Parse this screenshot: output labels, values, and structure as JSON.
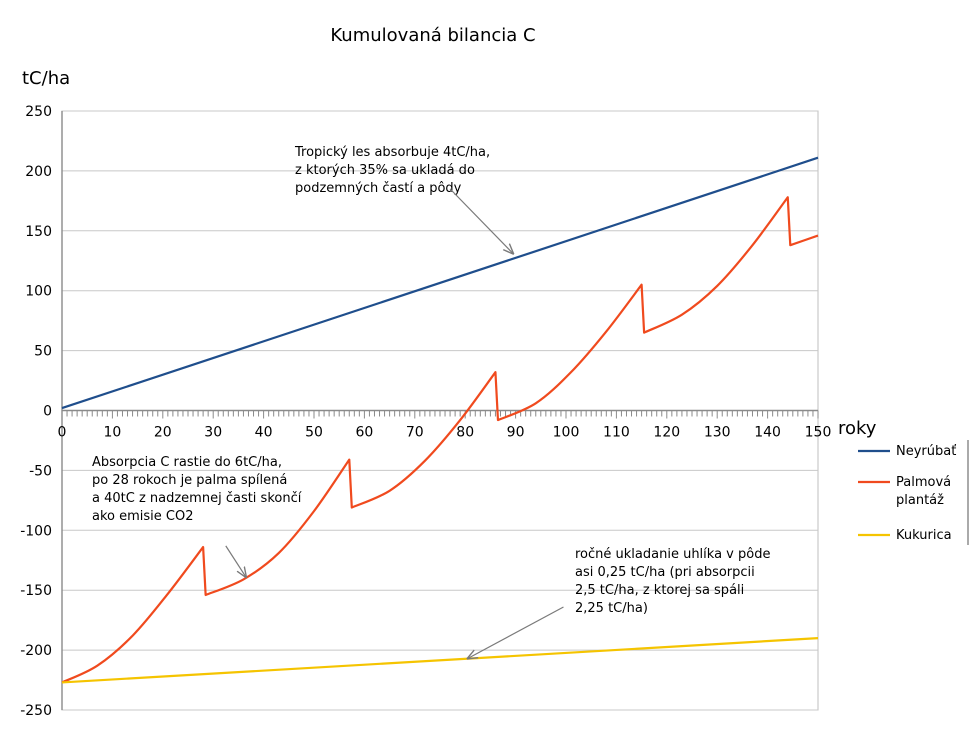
{
  "chart_data": {
    "type": "line",
    "title": "Kumulovaná bilancia C",
    "ylabel": "tC/ha",
    "xlabel": "roky",
    "xlim": [
      0,
      150
    ],
    "ylim": [
      -250,
      250
    ],
    "xticks": [
      0,
      10,
      20,
      30,
      40,
      50,
      60,
      70,
      80,
      90,
      100,
      110,
      120,
      130,
      140,
      150
    ],
    "yticks": [
      250,
      200,
      150,
      100,
      50,
      0,
      -50,
      -100,
      -150,
      -200,
      -250
    ],
    "grid": true,
    "legend_position": "right",
    "series": [
      {
        "name": "Neyrúbať",
        "color": "#1f4e8c",
        "x": [
          0,
          150
        ],
        "y": [
          2,
          211
        ]
      },
      {
        "name": "Palmová plantáž",
        "color": "#f04a1e",
        "cycles": [
          {
            "x": [
              0,
              7,
              14,
              21,
              28
            ],
            "y": [
              -227,
              -213,
              -188,
              -153,
              -114
            ]
          },
          {
            "x": [
              28.5,
              36,
              43,
              50,
              57
            ],
            "y": [
              -154,
              -141,
              -119,
              -84,
              -41
            ]
          },
          {
            "x": [
              57.5,
              65,
              72,
              79,
              86
            ],
            "y": [
              -81,
              -67,
              -42,
              -8,
              32
            ]
          },
          {
            "x": [
              86.5,
              94,
              101,
              108,
              115
            ],
            "y": [
              -8,
              6,
              32,
              66,
              105
            ]
          },
          {
            "x": [
              115.5,
              123,
              130,
              137,
              144
            ],
            "y": [
              65,
              80,
              104,
              138,
              178
            ]
          },
          {
            "x": [
              144.5,
              150
            ],
            "y": [
              138,
              146
            ]
          }
        ]
      },
      {
        "name": "Kukurica",
        "color": "#f5c400",
        "x": [
          0,
          150
        ],
        "y": [
          -227,
          -190
        ]
      }
    ],
    "annotations": [
      {
        "lines": [
          "Tropický les absorbuje 4tC/ha,",
          "z ktorých 35% sa ukladá do",
          "podzemných častí a pôdy"
        ],
        "arrow_from": [
          77,
          185
        ],
        "arrow_to": [
          89.5,
          131
        ]
      },
      {
        "lines": [
          "Absorpcia C rastie do 6tC/ha,",
          "po 28 rokoch je palma spílená",
          "a 40tC z nadzemnej časti skončí",
          "ako emisie CO2"
        ],
        "arrow_from": [
          32.5,
          -113
        ],
        "arrow_to": [
          36.5,
          -139
        ]
      },
      {
        "lines": [
          "ročné ukladanie uhlíka v pôde",
          "asi 0,25 tC/ha (pri absorpcii",
          "2,5 tC/ha, z ktorej sa spáli",
          "2,25 tC/ha)"
        ],
        "arrow_from": [
          99.5,
          -164
        ],
        "arrow_to": [
          80.5,
          -207
        ]
      }
    ]
  }
}
